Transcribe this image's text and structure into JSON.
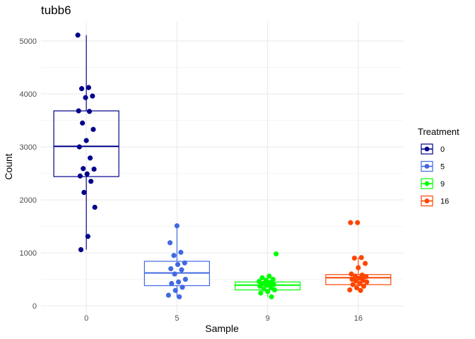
{
  "chart_data": {
    "type": "box",
    "title": "tubb6",
    "xlabel": "Sample",
    "ylabel": "Count",
    "categories": [
      "0",
      "5",
      "9",
      "16"
    ],
    "ylim": [
      0,
      5250
    ],
    "yticks": [
      0,
      1000,
      2000,
      3000,
      4000,
      5000
    ],
    "grid": true,
    "legend": {
      "title": "Treatment",
      "position": "right",
      "entries": [
        "0",
        "5",
        "9",
        "16"
      ]
    },
    "series": [
      {
        "category": "0",
        "color": "#00008B",
        "box": {
          "q1": 2440,
          "median": 3010,
          "q3": 3680,
          "whisker_low": 1060,
          "whisker_high": 5110
        },
        "points": [
          5110,
          4120,
          4100,
          3960,
          3930,
          3680,
          3670,
          3450,
          3330,
          3120,
          3000,
          2790,
          2590,
          2580,
          2490,
          2450,
          2350,
          2140,
          1860,
          1310,
          1060
        ]
      },
      {
        "category": "5",
        "color": "#4169E1",
        "box": {
          "q1": 380,
          "median": 620,
          "q3": 840,
          "whisker_low": 160,
          "whisker_high": 1510
        },
        "points": [
          1510,
          1190,
          1010,
          950,
          810,
          780,
          700,
          680,
          600,
          500,
          450,
          420,
          350,
          290,
          200,
          170
        ]
      },
      {
        "category": "9",
        "color": "#00FF00",
        "box": {
          "q1": 300,
          "median": 390,
          "q3": 450,
          "whisker_low": 170,
          "whisker_high": 560
        },
        "points": [
          980,
          560,
          530,
          500,
          480,
          460,
          440,
          420,
          400,
          390,
          370,
          350,
          320,
          300,
          270,
          240,
          170
        ]
      },
      {
        "category": "16",
        "color": "#FF4500",
        "box": {
          "q1": 400,
          "median": 530,
          "q3": 590,
          "whisker_low": 290,
          "whisker_high": 910
        },
        "points": [
          1570,
          1570,
          910,
          900,
          800,
          720,
          600,
          580,
          560,
          550,
          520,
          500,
          480,
          470,
          450,
          420,
          400,
          370,
          340,
          300,
          290
        ]
      }
    ]
  }
}
